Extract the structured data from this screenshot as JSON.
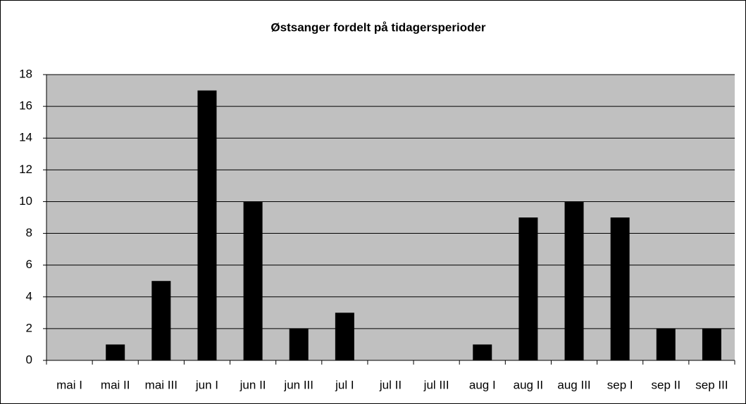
{
  "chart_data": {
    "type": "bar",
    "title": "Østsanger fordelt på tidagersperioder",
    "categories": [
      "mai I",
      "mai II",
      "mai III",
      "jun I",
      "jun II",
      "jun III",
      "jul I",
      "jul II",
      "jul III",
      "aug I",
      "aug II",
      "aug III",
      "sep I",
      "sep II",
      "sep III"
    ],
    "values": [
      0,
      1,
      5,
      17,
      10,
      2,
      3,
      0,
      0,
      1,
      9,
      10,
      9,
      2,
      2
    ],
    "color": "#000000",
    "plot_background": "#c0c0c0",
    "ylim": [
      0,
      18
    ],
    "yticks": [
      0,
      2,
      4,
      6,
      8,
      10,
      12,
      14,
      16,
      18
    ],
    "grid": true
  }
}
